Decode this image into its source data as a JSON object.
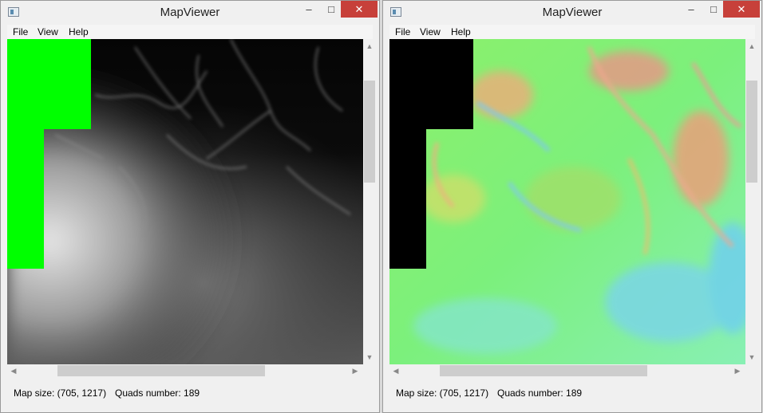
{
  "windows": [
    {
      "title": "MapViewer",
      "menu": [
        "File",
        "View",
        "Help"
      ],
      "status": {
        "map_size": "Map size: (705, 1217)",
        "quads": "Quads number: 189"
      },
      "controls": {
        "minimize": "–",
        "maximize": "□",
        "close": "✕"
      },
      "scroll": {
        "up": "▲",
        "down": "▼",
        "left": "◀",
        "right": "▶"
      }
    },
    {
      "title": "MapViewer",
      "menu": [
        "File",
        "View",
        "Help"
      ],
      "status": {
        "map_size": "Map size: (705, 1217)",
        "quads": "Quads number: 189"
      },
      "controls": {
        "minimize": "–",
        "maximize": "□",
        "close": "✕"
      },
      "scroll": {
        "up": "▲",
        "down": "▼",
        "left": "◀",
        "right": "▶"
      }
    }
  ],
  "colors": {
    "empty_tile_heightmap": "#00ff00",
    "empty_tile_normalmap": "#000000",
    "close_button": "#c7403a"
  },
  "icons": [
    "app-icon",
    "minimize-icon",
    "maximize-icon",
    "close-icon"
  ]
}
